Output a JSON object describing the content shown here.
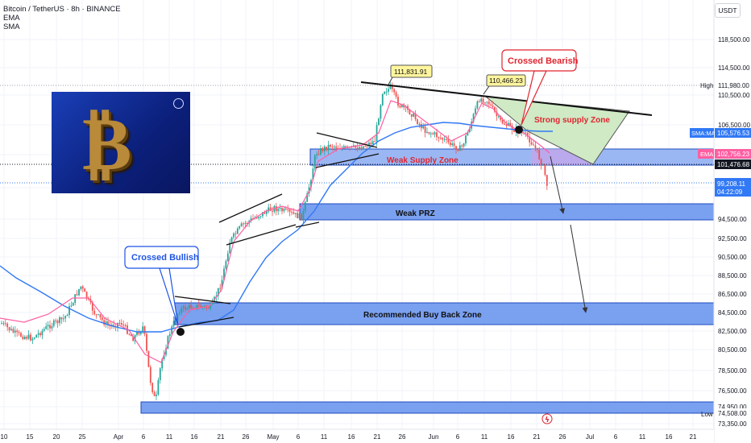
{
  "header": {
    "symbol": "Bitcoin / TetherUS · 8h · BINANCE",
    "indicator_1": "EMA",
    "indicator_2": "SMA",
    "currency_button": "USDT"
  },
  "colors": {
    "up": "#26a69a",
    "down": "#ef5350",
    "sma": "#3179f5",
    "ema": "#ff5fa2",
    "zone_fill": "#7aa0f0",
    "zone_border": "#1f4dbf",
    "supply_fill": "#cfeac5",
    "accent_red": "#e0252f",
    "callout_blue": "#1e53e5",
    "label_yellow": "#fff59d"
  },
  "axis": {
    "price_ticks": [
      "118,500.00",
      "114,500.00",
      "110,500.00",
      "106,500.00",
      "102,500.00",
      "98,500.00",
      "94,500.00",
      "92,500.00",
      "90,500.00",
      "88,500.00",
      "86,500.00",
      "84,500.00",
      "82,500.00",
      "80,500.00",
      "78,500.00",
      "76,500.00",
      "74,950.00",
      "73,350.00"
    ],
    "time_ticks": [
      "10",
      "15",
      "20",
      "25",
      "Apr",
      "6",
      "11",
      "16",
      "21",
      "26",
      "May",
      "6",
      "11",
      "16",
      "21",
      "26",
      "Jun",
      "6",
      "11",
      "16",
      "21",
      "26",
      "Jul",
      "6",
      "11",
      "16",
      "21"
    ]
  },
  "price_labels": {
    "high": {
      "tag": "High",
      "value": "111,980.00"
    },
    "sma": {
      "tag": "SMA:MA",
      "value": "105,576.53"
    },
    "ema": {
      "tag": "EMA",
      "value": "102,756.23"
    },
    "level": {
      "value": "101,476.68"
    },
    "last": {
      "value": "99,208.11",
      "countdown": "04:22:09"
    },
    "low": {
      "tag": "Low",
      "value": "74,508.00"
    }
  },
  "annotations": {
    "crossed_bullish": "Crossed Bullish",
    "crossed_bearish": "Crossed Bearish",
    "peak_1": "111,831.91",
    "peak_2": "110,466.23",
    "strong_supply": "Strong supply Zone",
    "weak_supply": "Weak Supply Zone",
    "weak_prz": "Weak PRZ",
    "buy_back": "Recommended Buy Back Zone"
  }
}
